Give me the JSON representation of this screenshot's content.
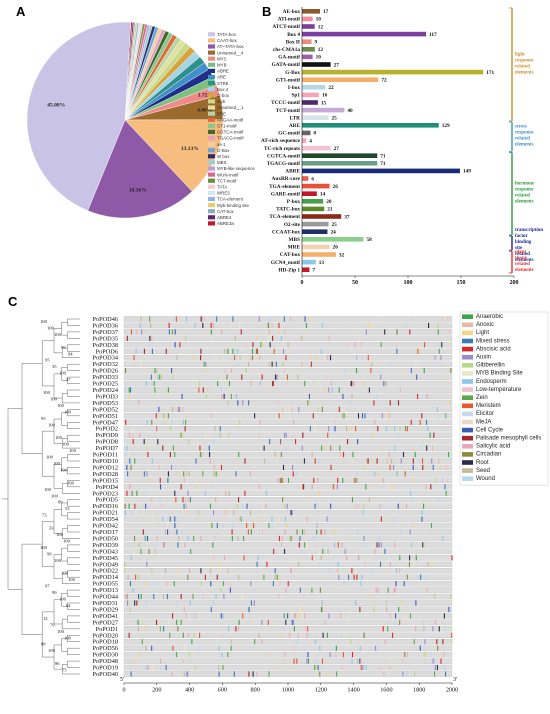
{
  "panel_labels": {
    "a": "A",
    "b": "B",
    "c": "C"
  },
  "chart_data": [
    {
      "type": "pie",
      "panel": "A",
      "legend_position": "right",
      "slices": [
        {
          "label": "TATA-box",
          "value": 45.08,
          "color": "#c9c4e6"
        },
        {
          "label": "CAAT-box",
          "value": 13.13,
          "color": "#f7bd7f"
        },
        {
          "label": "AT~TATA-box",
          "value": 18.36,
          "color": "#8e5aa8"
        },
        {
          "label": "Unnamed__4",
          "value": 4.06,
          "color": "#9b6a2c"
        },
        {
          "label": "MYC",
          "value": 1.72,
          "color": "#f08a8a"
        },
        {
          "label": "MYB",
          "value": 1.5,
          "color": "#7ec07e"
        },
        {
          "label": "ABRE",
          "value": 1.4,
          "color": "#1e2f8a"
        },
        {
          "label": "ARE",
          "value": 1.3,
          "color": "#3f8fc8"
        },
        {
          "label": "STRE",
          "value": 1.2,
          "color": "#2f8f8a"
        },
        {
          "label": "Box 4",
          "value": 1.2,
          "color": "#a4d4e8"
        },
        {
          "label": "G-box",
          "value": 1.1,
          "color": "#d9a43a"
        },
        {
          "label": "Myb",
          "value": 1.0,
          "color": "#c7d98a"
        },
        {
          "label": "Unnamed__1",
          "value": 0.9,
          "color": "#e0e0a0"
        },
        {
          "label": "ERE",
          "value": 0.8,
          "color": "#b6d6a8"
        },
        {
          "label": "AAGAA-motif",
          "value": 0.75,
          "color": "#e06a3a"
        },
        {
          "label": "GT1-motif",
          "value": 0.7,
          "color": "#8cc68a"
        },
        {
          "label": "CGTCA-motif",
          "value": 0.65,
          "color": "#3b6b2c"
        },
        {
          "label": "TGACG-motif",
          "value": 0.65,
          "color": "#e8a0c0"
        },
        {
          "label": "as-1",
          "value": 0.6,
          "color": "#f2d0a0"
        },
        {
          "label": "G-Box",
          "value": 0.55,
          "color": "#6aa6d8"
        },
        {
          "label": "W box",
          "value": 0.5,
          "color": "#2b2b6b"
        },
        {
          "label": "MBS",
          "value": 0.45,
          "color": "#9ad0d0"
        },
        {
          "label": "MYB-like sequence",
          "value": 0.4,
          "color": "#c0a0d0"
        },
        {
          "label": "WUN-motif",
          "value": 0.4,
          "color": "#d86a8a"
        },
        {
          "label": "TCT-motif",
          "value": 0.35,
          "color": "#6b8f3a"
        },
        {
          "label": "TATA",
          "value": 0.35,
          "color": "#f5c9d6"
        },
        {
          "label": "WRE3",
          "value": 0.3,
          "color": "#d0e8f0"
        },
        {
          "label": "TCA-element",
          "value": 0.3,
          "color": "#9ab0e0"
        },
        {
          "label": "Myb-binding site",
          "value": 0.3,
          "color": "#e6cf6a"
        },
        {
          "label": "CAT-box",
          "value": 0.25,
          "color": "#8aa8c8"
        },
        {
          "label": "ABRE4",
          "value": 0.25,
          "color": "#5a2a6a"
        },
        {
          "label": "ABRE3a",
          "value": 0.25,
          "color": "#c4182a"
        }
      ],
      "shown_percent_labels": [
        "45.08%",
        "18.36%",
        "13.13%",
        "4.06%",
        "1.72%"
      ]
    },
    {
      "type": "bar",
      "panel": "B",
      "orientation": "horizontal",
      "xlim": [
        0,
        200
      ],
      "xticks": [
        "0",
        "50",
        "100",
        "150",
        "200"
      ],
      "categories": [
        "AE-box",
        "ATl-motif",
        "ATCT-motif",
        "Box 4",
        "Box II",
        "chs-CMA1a",
        "GA-motif",
        "GATA-motif",
        "G-Box",
        "GT1-motif",
        "I-box",
        "Sp1",
        "TCCC-motif",
        "TCT-motif",
        "LTR",
        "ARE",
        "GC-motif",
        "AT-rich sequence",
        "TC-rich repeats",
        "CGTCA-motif",
        "TGACG-motif",
        "ABRE",
        "AuxRR-core",
        "TGA-element",
        "GARE-motif",
        "P-box",
        "TATC-box",
        "TCA-element",
        "O2-site",
        "CCAAT-box",
        "MBS",
        "MRE",
        "CAT-box",
        "GCN4_motif",
        "HD-Zip 1"
      ],
      "values": [
        17,
        10,
        12,
        117,
        9,
        12,
        10,
        27,
        171,
        72,
        22,
        16,
        15,
        40,
        25,
        129,
        8,
        4,
        27,
        71,
        71,
        149,
        6,
        26,
        14,
        20,
        21,
        37,
        25,
        24,
        58,
        26,
        32,
        13,
        7
      ],
      "colors": [
        "#8b5a2b",
        "#f28da2",
        "#7b3fa0",
        "#7b3fa0",
        "#f08a7a",
        "#6a8a4a",
        "#a25fa8",
        "#111111",
        "#b8b22a",
        "#f5ae6a",
        "#b6d6e8",
        "#f5a6b8",
        "#4a2a6a",
        "#c8a8d8",
        "#d8e4ec",
        "#1e8f7a",
        "#666666",
        "#f5a6b8",
        "#f3c2d0",
        "#1e4a2a",
        "#6a9f8a",
        "#1a2a7a",
        "#e85a4a",
        "#e8503a",
        "#c4182a",
        "#4aa04a",
        "#5a8a2a",
        "#8b2a1a",
        "#9a9a9a",
        "#1e2f6a",
        "#8ad08a",
        "#f5d0b0",
        "#f5ae6a",
        "#8ac8e8",
        "#c41a2a"
      ],
      "groups": [
        {
          "label": "light response related elements",
          "color": "#c9902a"
        },
        {
          "label": "stress response related elements",
          "color": "#3f8fc8"
        },
        {
          "label": "hormone response related elements",
          "color": "#2a9a3a"
        },
        {
          "label": "transcription factor binding site related elements",
          "color": "#1a2a9a"
        },
        {
          "label": "plant tissue related elements",
          "color": "#e0302a"
        }
      ]
    },
    {
      "type": "table",
      "panel": "C",
      "genes": [
        "PoPOD46",
        "PoPOD36",
        "PoPOD37",
        "PoPOD35",
        "PoPOD38",
        "PoPOD6",
        "PoPOD34",
        "PoPOD32",
        "PoPOD26",
        "PoPOD33",
        "PoPOD25",
        "PoPOD24",
        "PoPOD3",
        "PoPOD53",
        "PoPOD52",
        "PoPOD51",
        "PoPOD47",
        "PoPOD2",
        "PoPOD9",
        "PoPOD8",
        "PoPOD7",
        "PoPOD11",
        "PoPOD10",
        "PoPOD12",
        "PoPOD28",
        "PoPOD15",
        "PoPOD4",
        "PoPOD23",
        "PoPOD5",
        "PoPOD16",
        "PoPOD21",
        "PoPOD54",
        "PoPOD42",
        "PoPOD17",
        "PoPOD50",
        "PoPOD39",
        "PoPOD43",
        "PoPOD45",
        "PoPOD49",
        "PoPOD22",
        "PoPOD14",
        "PoPOD55",
        "PoPOD13",
        "PoPOD44",
        "PoPOD31",
        "PoPOD29",
        "PoPOD41",
        "PoPOD27",
        "PoPOD1",
        "PoPOD20",
        "PoPOD18",
        "PoPOD56",
        "PoPOD30",
        "PoPOD48",
        "PoPOD19",
        "PoPOD40"
      ],
      "bootstrap_labels": [
        "100",
        "100",
        "100",
        "99",
        "94",
        "95",
        "35",
        "100",
        "37",
        "100",
        "100",
        "100",
        "100",
        "95",
        "100",
        "100",
        "100",
        "100",
        "100",
        "100",
        "100",
        "100",
        "100",
        "100",
        "89",
        "53",
        "73",
        "33",
        "100",
        "100",
        "100",
        "99",
        "100",
        "100",
        "100",
        "97",
        "99",
        "100",
        "64",
        "12",
        "79",
        "100",
        "100",
        "88",
        "100",
        "86",
        "75"
      ],
      "axis": {
        "ticks": [
          "0",
          "200",
          "400",
          "600",
          "800",
          "1000",
          "1200",
          "1400",
          "1600",
          "1800",
          "2000"
        ],
        "start_label": "5'",
        "end_label": "3'",
        "xlim": [
          0,
          2000
        ]
      },
      "legend": [
        {
          "label": "Anaerobic",
          "color": "#3aa84a"
        },
        {
          "label": "Anoxic",
          "color": "#e8b8a8"
        },
        {
          "label": "Light",
          "color": "#f2d48a"
        },
        {
          "label": "Mixed stress",
          "color": "#3a7ab8"
        },
        {
          "label": "Abscisic acid",
          "color": "#d8282a"
        },
        {
          "label": "Auxin",
          "color": "#9a8ad0"
        },
        {
          "label": "Gibberellin",
          "color": "#b8d888"
        },
        {
          "label": "MYB Binding Site",
          "color": "#e8e8c8"
        },
        {
          "label": "Endosperm",
          "color": "#8ac8e8"
        },
        {
          "label": "Low-temperature",
          "color": "#f0c0c8"
        },
        {
          "label": "Zein",
          "color": "#5aa84a"
        },
        {
          "label": "Meristem",
          "color": "#e8582a"
        },
        {
          "label": "Elicitor",
          "color": "#c8d8f0"
        },
        {
          "label": "MeJA",
          "color": "#f0d8c8"
        },
        {
          "label": "Cell Cycle",
          "color": "#3a5ab8"
        },
        {
          "label": "Palisade mesophyll cells",
          "color": "#a8282a"
        },
        {
          "label": "Salicylic acid",
          "color": "#e8a8b8"
        },
        {
          "label": "Circadian",
          "color": "#8a8a3a"
        },
        {
          "label": "Root",
          "color": "#2a2a4a"
        },
        {
          "label": "Seed",
          "color": "#c8b898"
        },
        {
          "label": "Wound",
          "color": "#b8d8f0"
        }
      ]
    }
  ]
}
